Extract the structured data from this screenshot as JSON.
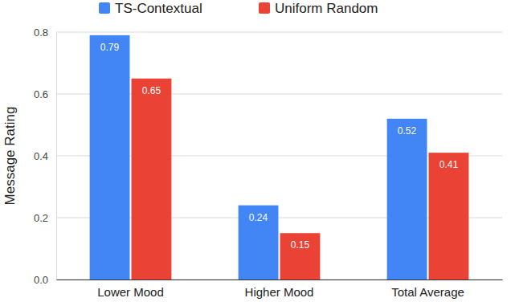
{
  "chart_data": {
    "type": "bar",
    "ylabel": "Message Rating",
    "categories": [
      "Lower Mood",
      "Higher Mood",
      "Total Average"
    ],
    "series": [
      {
        "name": "TS-Contextual",
        "color": "#4285f4",
        "values": [
          0.79,
          0.24,
          0.52
        ]
      },
      {
        "name": "Uniform Random",
        "color": "#ea4335",
        "values": [
          0.65,
          0.15,
          0.41
        ]
      }
    ],
    "ylim": [
      0,
      0.8
    ],
    "yticks": [
      {
        "value": 0,
        "label": "0.0"
      },
      0.2,
      0.4,
      0.6,
      0.8
    ],
    "grid": true,
    "legend": "top",
    "data_labels": true
  }
}
